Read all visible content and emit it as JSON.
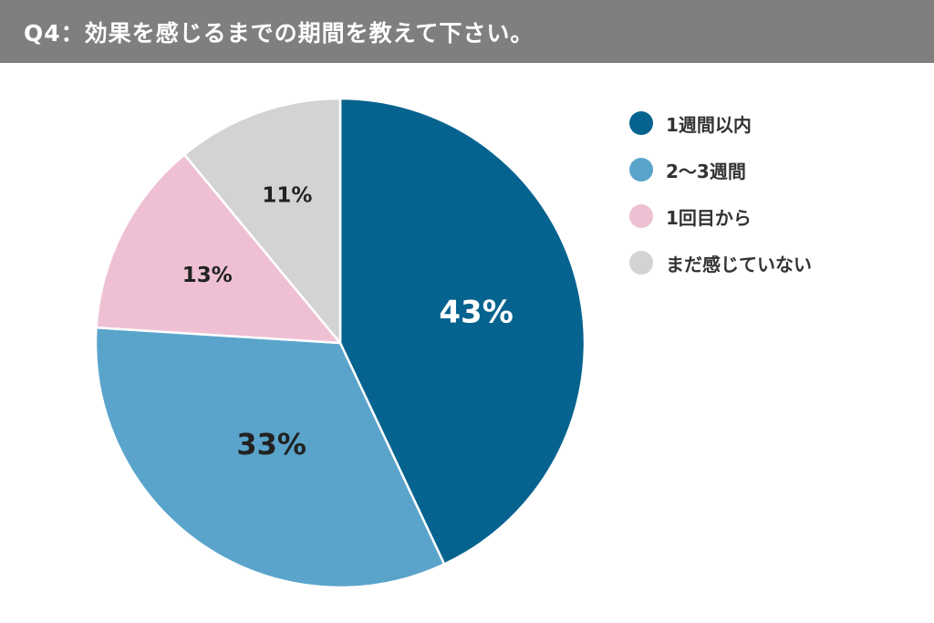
{
  "header": {
    "title": "Q4：効果を感じるまでの期間を教えて下さい。"
  },
  "chart_data": {
    "type": "pie",
    "categories": [
      "1週間以内",
      "2〜3週間",
      "1回目から",
      "まだ感じていない"
    ],
    "values": [
      43,
      33,
      13,
      11
    ],
    "labels": [
      "43%",
      "33%",
      "13%",
      "11%"
    ],
    "colors": [
      "#06638f",
      "#5aa4cb",
      "#efc0d3",
      "#d3d3d3"
    ],
    "label_colors": [
      "#ffffff",
      "#222222",
      "#222222",
      "#222222"
    ],
    "legend_position": "right"
  }
}
